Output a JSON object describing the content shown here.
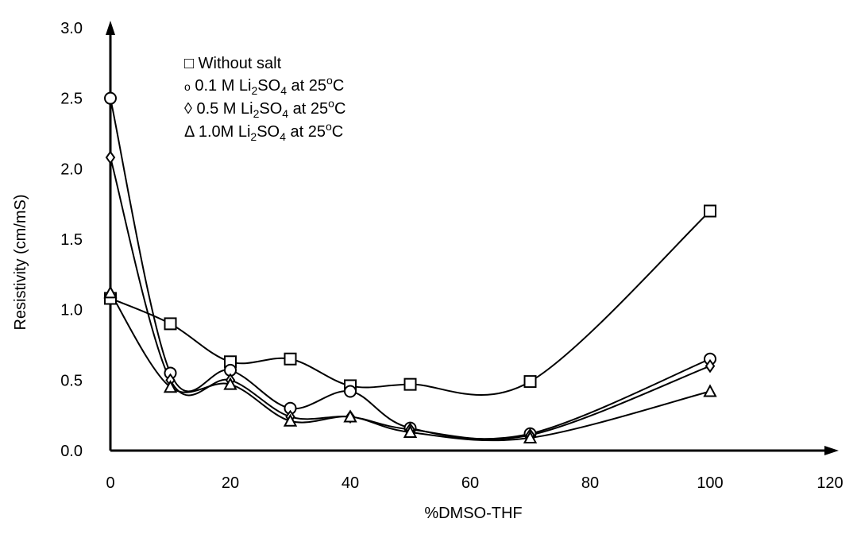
{
  "chart_data": {
    "type": "line",
    "title": "",
    "xlabel": "%DMSO-THF",
    "ylabel": "Resistivity (cm/mS)",
    "xlim": [
      0,
      120
    ],
    "ylim": [
      0,
      3.0
    ],
    "x_ticks": [
      "0",
      "20",
      "40",
      "60",
      "80",
      "100",
      "120"
    ],
    "y_ticks": [
      "0.0",
      "0.5",
      "1.0",
      "1.5",
      "2.0",
      "2.5",
      "3.0"
    ],
    "grid": false,
    "legend_position": "top-left",
    "series": [
      {
        "name": "Without salt",
        "marker": "square",
        "legend_symbol": "□",
        "x": [
          0,
          10,
          20,
          30,
          40,
          50,
          70,
          100
        ],
        "y": [
          1.08,
          0.9,
          0.63,
          0.65,
          0.46,
          0.47,
          0.49,
          1.7
        ]
      },
      {
        "name": "0.1 M Li2SO4 at 25oC",
        "marker": "circle",
        "legend_symbol": "o",
        "x": [
          0,
          10,
          20,
          30,
          40,
          50,
          70,
          100
        ],
        "y": [
          2.5,
          0.55,
          0.57,
          0.3,
          0.42,
          0.16,
          0.12,
          0.65
        ]
      },
      {
        "name": "0.5 M Li2SO4 at 25oC",
        "marker": "diamond",
        "legend_symbol": "◊",
        "x": [
          0,
          10,
          20,
          30,
          40,
          50,
          70,
          100
        ],
        "y": [
          2.08,
          0.5,
          0.5,
          0.24,
          0.24,
          0.15,
          0.11,
          0.6
        ]
      },
      {
        "name": "1.0M Li2SO4 at 25oC",
        "marker": "triangle",
        "legend_symbol": "Δ",
        "x": [
          0,
          10,
          20,
          30,
          40,
          50,
          70,
          100
        ],
        "y": [
          1.12,
          0.45,
          0.47,
          0.21,
          0.24,
          0.13,
          0.09,
          0.42
        ]
      }
    ]
  },
  "legend": {
    "items": [
      {
        "symbol": "□",
        "pre": " Without salt",
        "conc": "",
        "salt": "",
        "at": "",
        "temp": "",
        "unit": ""
      },
      {
        "symbol": "o",
        "pre": " 0.1 M Li",
        "sub1": "2",
        "mid": "SO",
        "sub2": "4",
        "at": " at 25",
        "sup": "o",
        "unit": "C"
      },
      {
        "symbol": "◊",
        "pre": " 0.5 M Li",
        "sub1": "2",
        "mid": "SO",
        "sub2": "4",
        "at": " at 25",
        "sup": "o",
        "unit": "C"
      },
      {
        "symbol": "Δ",
        "pre": " 1.0M Li",
        "sub1": "2",
        "mid": "SO",
        "sub2": "4",
        "at": " at 25",
        "sup": "o",
        "unit": "C"
      }
    ]
  }
}
